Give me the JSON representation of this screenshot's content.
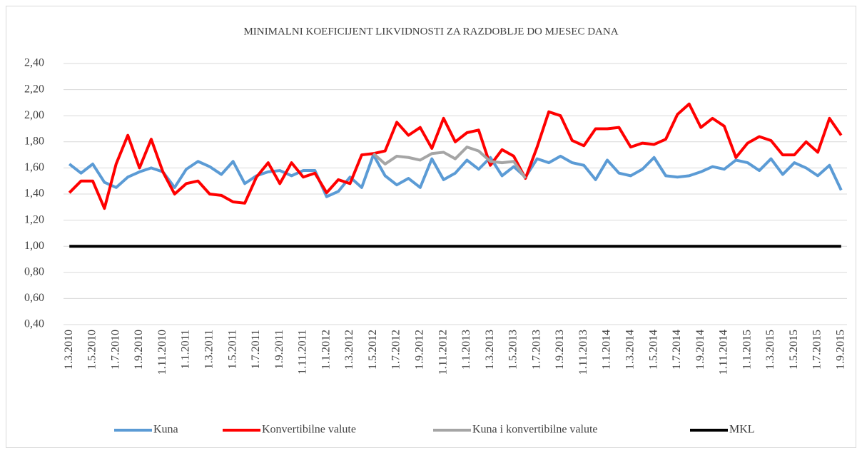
{
  "chart_data": {
    "type": "line",
    "title": "MINIMALNI KOEFICIJENT LIKVIDNOSTI ZA RAZDOBLJE DO MJESEC DANA",
    "categories": [
      "1.3.2010",
      null,
      "1.5.2010",
      null,
      "1.7.2010",
      null,
      "1.9.2010",
      null,
      "1.11.2010",
      null,
      "1.1.2011",
      null,
      "1.3.2011",
      null,
      "1.5.2011",
      null,
      "1.7.2011",
      null,
      "1.9.2011",
      null,
      "1.11.2011",
      null,
      "1.1.2012",
      null,
      "1.3.2012",
      null,
      "1.5.2012",
      null,
      "1.7.2012",
      null,
      "1.9.2012",
      null,
      "1.11.2012",
      null,
      "1.1.2013",
      null,
      "1.3.2013",
      null,
      "1.5.2013",
      null,
      "1.7.2013",
      null,
      "1.9.2013",
      null,
      "1.11.2013",
      null,
      "1.1.2014",
      null,
      "1.3.2014",
      null,
      "1.5.2014",
      null,
      "1.7.2014",
      null,
      "1.9.2014",
      null,
      "1.11.2014",
      null,
      "1.1.2015",
      null,
      "1.3.2015",
      null,
      "1.5.2015",
      null,
      "1.7.2015",
      null,
      "1.9.2015"
    ],
    "series": [
      {
        "name": "Kuna",
        "color": "#5b9bd5",
        "values": [
          1.63,
          1.56,
          1.63,
          1.49,
          1.45,
          1.53,
          1.57,
          1.6,
          1.57,
          1.45,
          1.59,
          1.65,
          1.61,
          1.55,
          1.65,
          1.48,
          1.54,
          1.57,
          1.58,
          1.54,
          1.58,
          1.58,
          1.38,
          1.42,
          1.53,
          1.45,
          1.7,
          1.54,
          1.47,
          1.52,
          1.45,
          1.67,
          1.51,
          1.56,
          1.66,
          1.59,
          1.68,
          1.54,
          1.61,
          1.53,
          1.67,
          1.64,
          1.69,
          1.64,
          1.62,
          1.51,
          1.66,
          1.56,
          1.54,
          1.59,
          1.68,
          1.54,
          1.53,
          1.54,
          1.57,
          1.61,
          1.59,
          1.66,
          1.64,
          1.58,
          1.67,
          1.55,
          1.64,
          1.6,
          1.54,
          1.62,
          1.43
        ]
      },
      {
        "name": "Konvertibilne valute",
        "color": "#ff0000",
        "values": [
          1.41,
          1.5,
          1.5,
          1.29,
          1.63,
          1.85,
          1.6,
          1.82,
          1.57,
          1.4,
          1.48,
          1.5,
          1.4,
          1.39,
          1.34,
          1.33,
          1.53,
          1.64,
          1.48,
          1.64,
          1.53,
          1.56,
          1.41,
          1.51,
          1.48,
          1.7,
          1.71,
          1.73,
          1.95,
          1.85,
          1.91,
          1.75,
          1.98,
          1.8,
          1.87,
          1.89,
          1.62,
          1.74,
          1.69,
          1.52,
          1.76,
          2.03,
          2.0,
          1.81,
          1.77,
          1.9,
          1.9,
          1.91,
          1.76,
          1.79,
          1.78,
          1.82,
          2.01,
          2.09,
          1.91,
          1.98,
          1.92,
          1.68,
          1.79,
          1.84,
          1.81,
          1.7,
          1.7,
          1.8,
          1.72,
          1.98,
          1.85
        ]
      },
      {
        "name": "Kuna i konvertibilne valute",
        "color": "#a5a5a5",
        "values": [
          null,
          null,
          null,
          null,
          null,
          null,
          null,
          null,
          null,
          null,
          null,
          null,
          null,
          null,
          null,
          null,
          null,
          null,
          null,
          null,
          null,
          null,
          null,
          null,
          null,
          null,
          1.71,
          1.63,
          1.69,
          1.68,
          1.66,
          1.71,
          1.72,
          1.67,
          1.76,
          1.73,
          1.65,
          1.64,
          1.65,
          1.52,
          null,
          null,
          null,
          null,
          null,
          null,
          null,
          null,
          null,
          null,
          null,
          null,
          null,
          null,
          null,
          null,
          null,
          null,
          null,
          null,
          null,
          null,
          null,
          null,
          null,
          null,
          null
        ]
      },
      {
        "name": "MKL",
        "color": "#000000",
        "values": [
          1,
          1,
          1,
          1,
          1,
          1,
          1,
          1,
          1,
          1,
          1,
          1,
          1,
          1,
          1,
          1,
          1,
          1,
          1,
          1,
          1,
          1,
          1,
          1,
          1,
          1,
          1,
          1,
          1,
          1,
          1,
          1,
          1,
          1,
          1,
          1,
          1,
          1,
          1,
          1,
          1,
          1,
          1,
          1,
          1,
          1,
          1,
          1,
          1,
          1,
          1,
          1,
          1,
          1,
          1,
          1,
          1,
          1,
          1,
          1,
          1,
          1,
          1,
          1,
          1,
          1,
          1
        ]
      }
    ],
    "ylim": [
      0.4,
      2.4
    ],
    "yticks": [
      {
        "value": 0.4,
        "label": "0,40"
      },
      {
        "value": 0.6,
        "label": "0,60"
      },
      {
        "value": 0.8,
        "label": "0,80"
      },
      {
        "value": 1.0,
        "label": "1,00"
      },
      {
        "value": 1.2,
        "label": "1,20"
      },
      {
        "value": 1.4,
        "label": "1,40"
      },
      {
        "value": 1.6,
        "label": "1,60"
      },
      {
        "value": 1.8,
        "label": "1,80"
      },
      {
        "value": 2.0,
        "label": "2,00"
      },
      {
        "value": 2.2,
        "label": "2,20"
      },
      {
        "value": 2.4,
        "label": "2,40"
      }
    ],
    "grid": true,
    "legend": "bottom"
  }
}
